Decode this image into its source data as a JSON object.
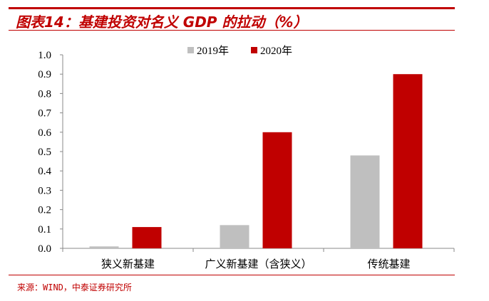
{
  "title": "图表14：基建投资对名义 GDP 的拉动（%）",
  "source": "来源：WIND，中泰证券研究所",
  "chart_data": {
    "type": "bar",
    "categories": [
      "狭义新基建",
      "广义新基建（含狭义）",
      "传统基建"
    ],
    "series": [
      {
        "name": "2019年",
        "values": [
          0.01,
          0.12,
          0.48
        ],
        "color": "#bfbfbf"
      },
      {
        "name": "2020年",
        "values": [
          0.11,
          0.6,
          0.9
        ],
        "color": "#c00000"
      }
    ],
    "ylim": [
      0,
      1.0
    ],
    "yticks": [
      "0.0",
      "0.1",
      "0.2",
      "0.3",
      "0.4",
      "0.5",
      "0.6",
      "0.7",
      "0.8",
      "0.9",
      "1.0"
    ],
    "grid": false,
    "legend": "top-center"
  }
}
